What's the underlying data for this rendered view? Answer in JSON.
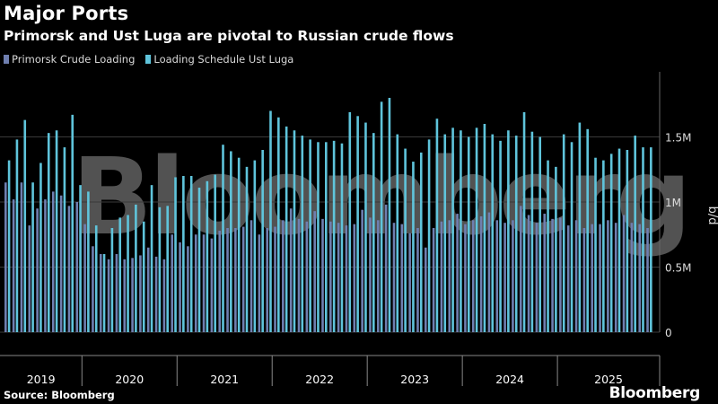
{
  "header": {
    "title": "Major Ports",
    "subtitle": "Primorsk and Ust Luga are pivotal to Russian crude flows"
  },
  "footer": {
    "source": "Source: Bloomberg",
    "brand": "Bloomberg",
    "watermark": "Bloomberg"
  },
  "chart_data": {
    "type": "bar",
    "grid": true,
    "legend_position": "top-left",
    "ylabel": "b/d",
    "ylim": [
      0,
      2000000
    ],
    "yticks": [
      {
        "value": 0,
        "label": "0"
      },
      {
        "value": 500000,
        "label": "0.5M"
      },
      {
        "value": 1000000,
        "label": "1M"
      },
      {
        "value": 1500000,
        "label": "1.5M"
      }
    ],
    "x_start": "2019-03",
    "x_year_labels": [
      "2019",
      "2020",
      "2021",
      "2022",
      "2023",
      "2024",
      "2025"
    ],
    "series": [
      {
        "name": "Primorsk Crude Loading",
        "color": "#6f7fb0",
        "values": [
          1150000,
          1020000,
          1150000,
          820000,
          950000,
          1020000,
          1080000,
          1050000,
          970000,
          1000000,
          830000,
          660000,
          600000,
          560000,
          600000,
          560000,
          570000,
          590000,
          650000,
          580000,
          560000,
          750000,
          690000,
          660000,
          750000,
          750000,
          720000,
          780000,
          800000,
          800000,
          810000,
          860000,
          750000,
          800000,
          810000,
          860000,
          950000,
          870000,
          850000,
          930000,
          870000,
          850000,
          840000,
          820000,
          830000,
          940000,
          880000,
          860000,
          980000,
          840000,
          830000,
          760000,
          800000,
          650000,
          800000,
          850000,
          860000,
          910000,
          830000,
          860000,
          890000,
          920000,
          860000,
          840000,
          860000,
          970000,
          900000,
          840000,
          910000,
          870000,
          880000,
          820000,
          860000,
          800000,
          830000,
          830000,
          860000,
          840000,
          900000,
          840000,
          830000,
          800000
        ],
        "__comment": "estimated"
      },
      {
        "name": "Loading Schedule Ust Luga",
        "color": "#5fc4db",
        "values": [
          1320000,
          1480000,
          1630000,
          1150000,
          1300000,
          1530000,
          1550000,
          1420000,
          1670000,
          1130000,
          1080000,
          820000,
          600000,
          800000,
          880000,
          900000,
          980000,
          850000,
          1130000,
          960000,
          970000,
          1190000,
          1200000,
          1200000,
          1110000,
          1160000,
          1210000,
          1440000,
          1390000,
          1340000,
          1270000,
          1320000,
          1400000,
          1700000,
          1650000,
          1580000,
          1550000,
          1510000,
          1480000,
          1460000,
          1460000,
          1470000,
          1450000,
          1690000,
          1660000,
          1610000,
          1530000,
          1770000,
          1800000,
          1520000,
          1410000,
          1310000,
          1380000,
          1480000,
          1640000,
          1520000,
          1570000,
          1550000,
          1500000,
          1570000,
          1600000,
          1520000,
          1470000,
          1550000,
          1510000,
          1690000,
          1540000,
          1500000,
          1320000,
          1270000,
          1520000,
          1460000,
          1610000,
          1560000,
          1340000,
          1320000,
          1370000,
          1410000,
          1400000,
          1510000,
          1420000,
          1420000
        ]
      }
    ]
  }
}
